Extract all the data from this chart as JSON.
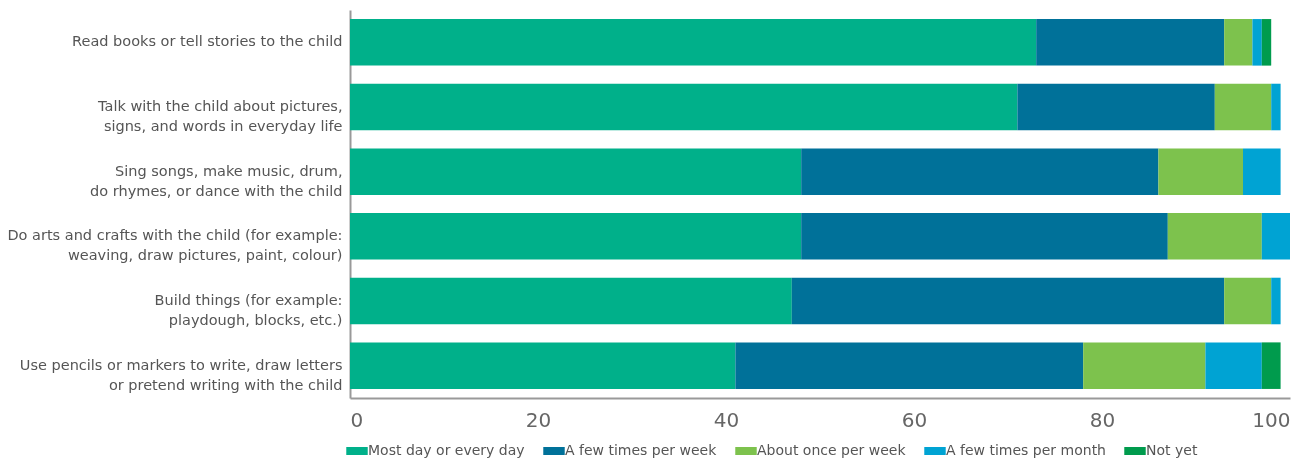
{
  "chart_data": {
    "type": "bar",
    "orientation": "horizontal",
    "stacked": true,
    "categories": [
      "Read books or tell stories to the child",
      "Talk with the child about pictures,\nsigns, and words in everyday life",
      "Sing songs, make music, drum,\ndo rhymes, or dance with the child",
      "Do arts and crafts with the child (for example:\nweaving, draw pictures, paint, colour)",
      "Build things (for example:\nplaydough, blocks, etc.)",
      "Use pencils or markers to write, draw letters\nor pretend writing with the child"
    ],
    "series": [
      {
        "name": "Most day or every day",
        "color": "#00b08a",
        "values": [
          73,
          71,
          48,
          48,
          47,
          41
        ]
      },
      {
        "name": "A few times per week",
        "color": "#007199",
        "values": [
          20,
          21,
          38,
          39,
          46,
          37
        ]
      },
      {
        "name": "About once per week",
        "color": "#7dc24d",
        "values": [
          3,
          6,
          9,
          10,
          5,
          13
        ]
      },
      {
        "name": "A few times per month",
        "color": "#00a3d3",
        "values": [
          1,
          1,
          4,
          3,
          1,
          6
        ]
      },
      {
        "name": "Not yet",
        "color": "#009b4d",
        "values": [
          1,
          null,
          null,
          null,
          null,
          2
        ]
      }
    ],
    "xlim": [
      0,
      100
    ],
    "xticks": [
      0,
      20,
      40,
      60,
      80,
      100
    ],
    "grid": false,
    "legend": "bottom"
  }
}
